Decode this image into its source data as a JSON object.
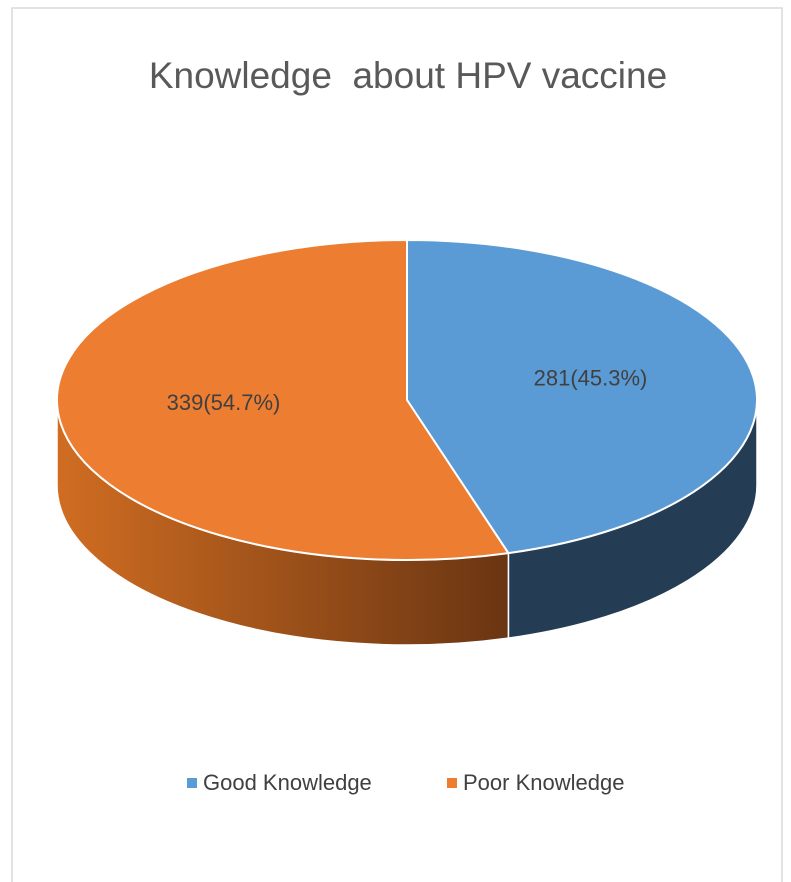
{
  "chart_data": {
    "type": "pie",
    "title": "Knowledge  about HPV vaccine",
    "categories": [
      "Good Knowledge",
      "Poor Knowledge"
    ],
    "values": [
      281,
      339
    ],
    "value_labels": [
      "281(45.3%)",
      "339(54.7%)"
    ],
    "colors": [
      "#5b9bd5",
      "#ed7d31"
    ],
    "legend": "bottom"
  }
}
